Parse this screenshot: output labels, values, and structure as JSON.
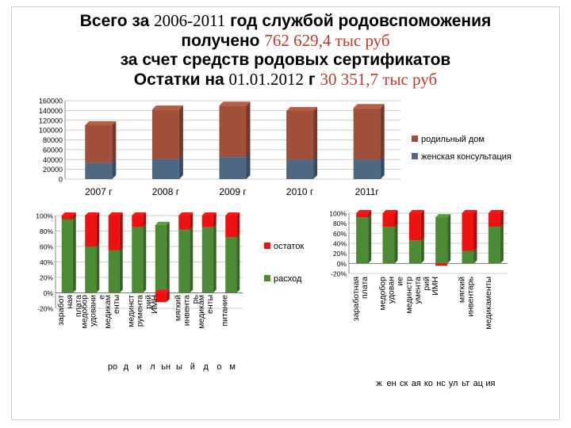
{
  "title": {
    "line1_pre": "Всего за ",
    "line1_years": "2006-2011",
    "line1_post": " год службой родовспоможения",
    "line2_pre": "получено ",
    "line2_value": "762 629,4 тыс руб",
    "line3": "за счет средств родовых сертификатов",
    "line4_pre": "Остатки на ",
    "line4_date": "01.01.2012",
    "line4_mid": " г ",
    "line4_value": "30 351,7 тыс руб"
  },
  "colors": {
    "brown": "#a0503a",
    "steel": "#4f6882",
    "green": "#4d8a35",
    "red": "#ee1111"
  },
  "chart_data": [
    {
      "type": "bar",
      "stacked": true,
      "categories": [
        "2007 г",
        "2008 г",
        "2009 г",
        "2010 г",
        "2011г"
      ],
      "series": [
        {
          "name": "женская консультация",
          "values": [
            33000,
            41000,
            45000,
            40000,
            40000
          ]
        },
        {
          "name": "родильный дом",
          "values": [
            77000,
            101000,
            105000,
            99000,
            105000
          ]
        }
      ],
      "yticks": [
        "160000",
        "140000",
        "120000",
        "100000",
        "80000",
        "60000",
        "40000",
        "20000",
        "0"
      ],
      "ylim": [
        0,
        160000
      ],
      "legend": "right"
    },
    {
      "type": "bar",
      "stacked": true,
      "categories": [
        "заработ ная плата",
        "медобор удовани е",
        "медикам енты",
        "мединст румента рий",
        "ИМН",
        "мягкий инвента рь",
        "медикам енты",
        "питание"
      ],
      "categories_row2": [
        "ро",
        "д",
        "и",
        "л",
        "ьн",
        "ы",
        "й",
        "д",
        "о",
        "м"
      ],
      "series": [
        {
          "name": "расход",
          "values": [
            95,
            60,
            55,
            85,
            88,
            82,
            85,
            72
          ]
        },
        {
          "name": "остаток",
          "values": [
            5,
            40,
            45,
            15,
            -12,
            18,
            15,
            28
          ]
        }
      ],
      "yticks": [
        "100%",
        "80%",
        "60%",
        "40%",
        "20%",
        "0%",
        "-20%"
      ],
      "ylim": [
        -20,
        100
      ],
      "legend": "right"
    },
    {
      "type": "bar",
      "stacked": true,
      "categories": [
        "заработная плата",
        "медобор удован ие",
        "мединстр умента рий",
        "ИМН",
        "мягкий инвентарь",
        "медикаменты"
      ],
      "categories_row2": [
        "ж",
        "ен",
        "ск",
        "ая",
        "ко",
        "нс",
        "ул",
        "ьт",
        "ац",
        "ия"
      ],
      "series": [
        {
          "name": "расход",
          "values": [
            92,
            73,
            46,
            92,
            25,
            73
          ]
        },
        {
          "name": "остаток",
          "values": [
            8,
            27,
            54,
            0,
            75,
            27
          ]
        }
      ],
      "yticks": [
        "100%",
        "80%",
        "60%",
        "40%",
        "20%",
        "0%",
        "-20%"
      ],
      "ylim": [
        -20,
        100
      ]
    }
  ]
}
